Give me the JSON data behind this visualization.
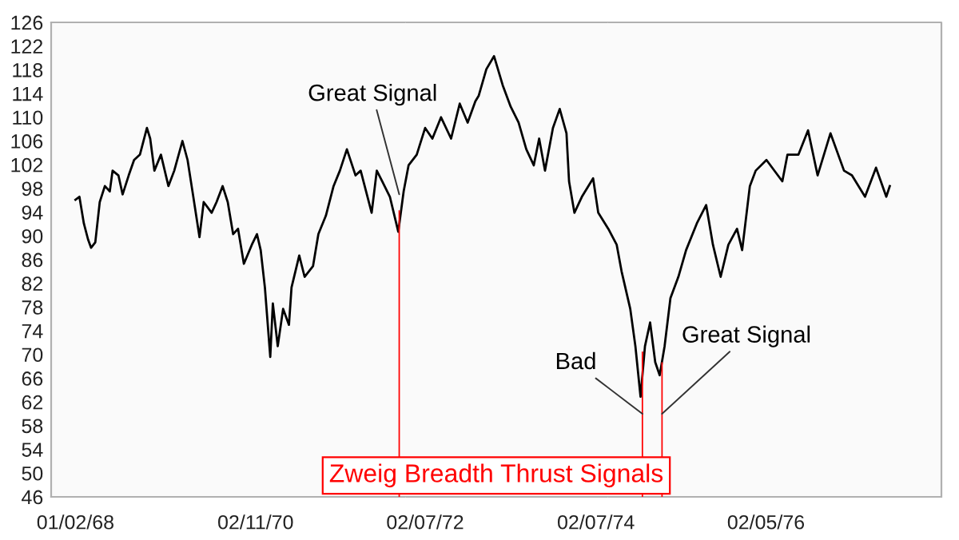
{
  "chart_data": {
    "type": "line",
    "xlim": [
      "1967-09-20",
      "1978-02-25"
    ],
    "xticks": [
      {
        "value": "1968-01-02",
        "label": "01/02/68"
      },
      {
        "value": "1970-02-11",
        "label": "02/11/70"
      },
      {
        "value": "1972-02-07",
        "label": "02/07/72"
      },
      {
        "value": "1974-02-07",
        "label": "02/07/74"
      },
      {
        "value": "1976-02-05",
        "label": "02/05/76"
      }
    ],
    "ylim": [
      46,
      126
    ],
    "yticks": [
      46,
      50,
      54,
      58,
      62,
      66,
      70,
      74,
      78,
      82,
      86,
      90,
      94,
      98,
      102,
      106,
      110,
      114,
      118,
      122,
      126
    ],
    "grid": false,
    "series": [
      {
        "color": "#000000",
        "x": [
          "1968-01-02",
          "1968-01-19",
          "1968-02-07",
          "1968-02-25",
          "1968-03-09",
          "1968-03-27",
          "1968-04-15",
          "1968-05-07",
          "1968-05-28",
          "1968-06-09",
          "1968-07-04",
          "1968-07-22",
          "1968-08-17",
          "1968-09-09",
          "1968-10-04",
          "1968-11-03",
          "1968-11-17",
          "1968-12-05",
          "1969-01-02",
          "1969-02-03",
          "1969-02-28",
          "1969-04-04",
          "1969-04-26",
          "1969-05-17",
          "1969-06-16",
          "1969-07-04",
          "1969-08-07",
          "1969-08-28",
          "1969-09-23",
          "1969-10-15",
          "1969-11-07",
          "1969-11-28",
          "1969-12-23",
          "1970-01-26",
          "1970-02-17",
          "1970-03-05",
          "1970-03-23",
          "1970-04-15",
          "1970-04-26",
          "1970-05-17",
          "1970-06-09",
          "1970-07-04",
          "1970-07-15",
          "1970-08-17",
          "1970-09-09",
          "1970-10-15",
          "1970-11-07",
          "1970-12-09",
          "1971-01-11",
          "1971-02-07",
          "1971-03-09",
          "1971-04-15",
          "1971-05-07",
          "1971-06-23",
          "1971-07-15",
          "1971-08-07",
          "1971-09-09",
          "1971-10-15",
          "1971-11-07",
          "1971-11-28",
          "1972-01-02",
          "1972-02-07",
          "1972-03-09",
          "1972-04-15",
          "1972-05-28",
          "1972-07-04",
          "1972-08-07",
          "1972-09-09",
          "1972-09-23",
          "1972-10-26",
          "1972-11-28",
          "1973-01-04",
          "1973-02-07",
          "1973-03-13",
          "1973-04-15",
          "1973-05-17",
          "1973-06-09",
          "1973-07-04",
          "1973-08-07",
          "1973-09-05",
          "1973-10-04",
          "1973-10-15",
          "1973-11-07",
          "1973-12-09",
          "1974-01-26",
          "1974-02-17",
          "1974-04-01",
          "1974-05-07",
          "1974-05-28",
          "1974-07-04",
          "1974-07-26",
          "1974-08-17",
          "1974-09-05",
          "1974-09-27",
          "1974-10-19",
          "1974-11-07",
          "1974-11-28",
          "1974-12-23",
          "1975-01-26",
          "1975-02-28",
          "1975-04-15",
          "1975-05-25",
          "1975-06-23",
          "1975-07-26",
          "1975-08-28",
          "1975-10-04",
          "1975-10-26",
          "1975-11-28",
          "1975-12-23",
          "1976-02-07",
          "1976-04-15",
          "1976-05-07",
          "1976-06-23",
          "1976-08-03",
          "1976-09-13",
          "1976-11-07",
          "1977-01-04",
          "1977-02-07",
          "1977-04-04",
          "1977-05-21",
          "1977-07-04",
          "1977-07-19"
        ],
        "values": [
          96.1,
          96.6,
          92.1,
          89.4,
          88.0,
          88.9,
          95.7,
          98.4,
          97.5,
          101.0,
          100.2,
          97.0,
          100.2,
          102.8,
          103.7,
          108.2,
          106.4,
          101.0,
          103.7,
          98.4,
          101.0,
          106.0,
          102.8,
          97.5,
          89.8,
          95.7,
          93.9,
          95.7,
          98.4,
          95.7,
          90.3,
          91.2,
          85.3,
          88.5,
          90.3,
          87.6,
          81.3,
          69.6,
          78.6,
          71.4,
          77.7,
          75.0,
          81.3,
          86.7,
          83.1,
          84.9,
          90.3,
          93.4,
          98.4,
          101.0,
          104.6,
          100.2,
          101.0,
          93.9,
          101.0,
          99.2,
          96.6,
          90.7,
          97.5,
          101.9,
          103.7,
          108.2,
          106.4,
          110.0,
          106.4,
          112.3,
          109.1,
          112.7,
          113.6,
          118.1,
          120.3,
          115.4,
          111.8,
          109.1,
          104.6,
          101.9,
          106.4,
          101.0,
          108.2,
          111.4,
          107.3,
          99.2,
          93.9,
          96.6,
          99.7,
          93.9,
          91.2,
          88.5,
          84.0,
          77.7,
          71.4,
          62.9,
          71.4,
          75.4,
          68.7,
          66.5,
          71.4,
          79.5,
          83.1,
          87.6,
          92.1,
          95.2,
          88.5,
          83.1,
          88.5,
          91.2,
          87.6,
          98.4,
          101.0,
          102.8,
          99.2,
          103.7,
          103.7,
          107.8,
          100.2,
          107.3,
          101.0,
          100.2,
          96.6,
          101.5,
          96.6,
          98.4
        ]
      },
      {
        "type": "bar",
        "color": "#ff0000",
        "x": [
          "1971-10-19",
          "1974-08-25",
          "1974-11-17"
        ],
        "values": [
          94.3,
          70.5,
          68.7
        ]
      }
    ],
    "annotations": [
      {
        "text": "Great Signal",
        "x": "1971-10-19",
        "y": 97
      },
      {
        "text": "Bad",
        "x": "1974-08-25",
        "y": 60
      },
      {
        "text": "Great Signal",
        "x": "1974-11-17",
        "y": 60
      },
      "Zweig Breadth Thrust Signals"
    ]
  }
}
